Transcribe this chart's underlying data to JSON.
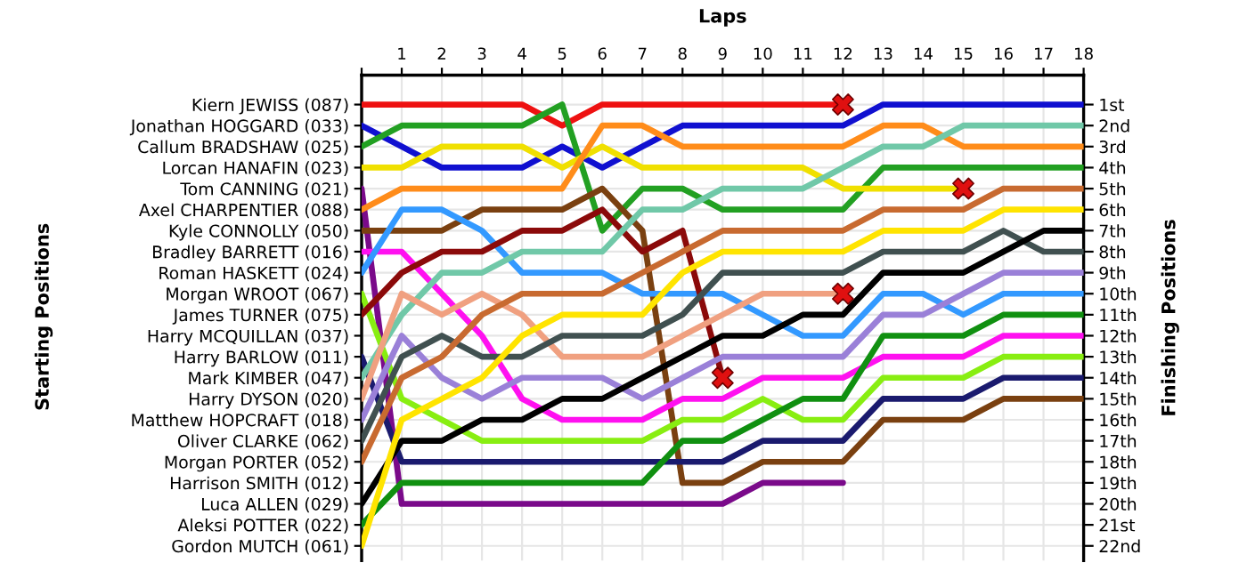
{
  "chart_data": {
    "type": "line",
    "xlabel": "Laps",
    "annotations": [
      "Starting Positions"
    ],
    "y2label": "Finishing Positions",
    "x": [
      0,
      1,
      2,
      3,
      4,
      5,
      6,
      7,
      8,
      9,
      10,
      11,
      12,
      13,
      14,
      15,
      16,
      17,
      18
    ],
    "xlim": [
      0,
      18
    ],
    "xticks": [
      {
        "value": 0,
        "label": null
      },
      1,
      2,
      3,
      4,
      5,
      6,
      7,
      8,
      9,
      10,
      11,
      12,
      13,
      14,
      15,
      16,
      17,
      18
    ],
    "y_categories": [
      "Kiern JEWISS (087)",
      "Jonathan HOGGARD (033)",
      "Callum BRADSHAW (025)",
      "Lorcan HANAFIN (023)",
      "Tom CANNING (021)",
      "Axel CHARPENTIER (088)",
      "Kyle CONNOLLY (050)",
      "Bradley BARRETT (016)",
      "Roman HASKETT (024)",
      "Morgan WROOT (067)",
      "James TURNER (075)",
      "Harry MCQUILLAN (037)",
      "Harry BARLOW (011)",
      "Mark KIMBER (047)",
      "Harry DYSON (020)",
      "Matthew HOPCRAFT (018)",
      "Oliver CLARKE (062)",
      "Morgan PORTER (052)",
      "Harrison SMITH (012)",
      "Luca ALLEN (029)",
      "Aleksi POTTER (022)",
      "Gordon MUTCH (061)"
    ],
    "y2lim": [
      22.7,
      -0.4
    ],
    "y2ticks": [
      {
        "value": 1,
        "label": "1st"
      },
      {
        "value": 2,
        "label": "2nd"
      },
      {
        "value": 3,
        "label": "3rd"
      },
      {
        "value": 4,
        "label": "4th"
      },
      {
        "value": 5,
        "label": "5th"
      },
      {
        "value": 6,
        "label": "6th"
      },
      {
        "value": 7,
        "label": "7th"
      },
      {
        "value": 8,
        "label": "8th"
      },
      {
        "value": 9,
        "label": "9th"
      },
      {
        "value": 10,
        "label": "10th"
      },
      {
        "value": 11,
        "label": "11th"
      },
      {
        "value": 12,
        "label": "12th"
      },
      {
        "value": 13,
        "label": "13th"
      },
      {
        "value": 14,
        "label": "14th"
      },
      {
        "value": 15,
        "label": "15th"
      },
      {
        "value": 16,
        "label": "16th"
      },
      {
        "value": 17,
        "label": "17th"
      },
      {
        "value": 18,
        "label": "18th"
      },
      {
        "value": 19,
        "label": "19th"
      },
      {
        "value": 20,
        "label": "20th"
      },
      {
        "value": 21,
        "label": "21st"
      },
      {
        "value": 22,
        "label": "22nd"
      }
    ],
    "grid": true,
    "marker": "none",
    "line_style": "solid",
    "series": [
      {
        "axis": "y2",
        "color": "#ee1111",
        "values": [
          1,
          1,
          1,
          1,
          1,
          2,
          1,
          1,
          1,
          1,
          1,
          1,
          1,
          null,
          null,
          null,
          null,
          null,
          null
        ]
      },
      {
        "axis": "y2",
        "color": "#1010d0",
        "values": [
          2,
          3,
          4,
          4,
          4,
          3,
          4,
          3,
          2,
          2,
          2,
          2,
          2,
          1,
          1,
          1,
          1,
          1,
          1
        ]
      },
      {
        "axis": "y2",
        "color": "#22a022",
        "values": [
          3,
          2,
          2,
          2,
          2,
          1,
          7,
          5,
          5,
          6,
          6,
          6,
          6,
          4,
          4,
          4,
          4,
          4,
          4
        ]
      },
      {
        "axis": "y2",
        "color": "#f0e000",
        "values": [
          4,
          4,
          3,
          3,
          3,
          4,
          3,
          4,
          4,
          4,
          4,
          4,
          5,
          5,
          5,
          5,
          null,
          null,
          null
        ]
      },
      {
        "axis": "y2",
        "color": "#7a0a8a",
        "values": [
          5,
          20,
          20,
          20,
          20,
          20,
          20,
          20,
          20,
          20,
          19,
          19,
          19,
          null,
          null,
          null,
          null,
          null,
          null
        ]
      },
      {
        "axis": "y2",
        "color": "#ff8c1a",
        "values": [
          6,
          5,
          5,
          5,
          5,
          5,
          2,
          2,
          3,
          3,
          3,
          3,
          3,
          2,
          2,
          3,
          3,
          3,
          3
        ]
      },
      {
        "axis": "y2",
        "color": "#7a4010",
        "values": [
          7,
          7,
          7,
          6,
          6,
          6,
          5,
          7,
          19,
          19,
          18,
          18,
          18,
          16,
          16,
          16,
          15,
          15,
          15
        ]
      },
      {
        "axis": "y2",
        "color": "#ff10f0",
        "values": [
          8,
          8,
          10,
          12,
          15,
          16,
          16,
          16,
          15,
          15,
          14,
          14,
          14,
          13,
          13,
          13,
          12,
          12,
          12
        ]
      },
      {
        "axis": "y2",
        "color": "#3399ff",
        "values": [
          9,
          6,
          6,
          7,
          9,
          9,
          9,
          10,
          10,
          10,
          11,
          12,
          12,
          10,
          10,
          11,
          10,
          10,
          10
        ]
      },
      {
        "axis": "y2",
        "color": "#88ee11",
        "values": [
          10,
          15,
          16,
          17,
          17,
          17,
          17,
          17,
          16,
          16,
          15,
          16,
          16,
          14,
          14,
          14,
          13,
          13,
          13
        ]
      },
      {
        "axis": "y2",
        "color": "#8b0a0a",
        "values": [
          11,
          9,
          8,
          8,
          7,
          7,
          6,
          8,
          7,
          14,
          null,
          null,
          null,
          null,
          null,
          null,
          null,
          null,
          null
        ]
      },
      {
        "axis": "y2",
        "color": "#1a1a6e",
        "values": [
          13,
          18,
          18,
          18,
          18,
          18,
          18,
          18,
          18,
          18,
          17,
          17,
          17,
          15,
          15,
          15,
          14,
          14,
          14
        ]
      },
      {
        "axis": "y2",
        "color": "#70c8a8",
        "values": [
          14,
          11,
          9,
          9,
          8,
          8,
          8,
          6,
          6,
          5,
          5,
          5,
          4,
          3,
          3,
          2,
          2,
          2,
          2
        ]
      },
      {
        "axis": "y2",
        "color": "#f0a080",
        "values": [
          15,
          10,
          11,
          10,
          11,
          13,
          13,
          13,
          12,
          11,
          10,
          10,
          10,
          null,
          null,
          null,
          null,
          null,
          null
        ]
      },
      {
        "axis": "y2",
        "color": "#9a80d8",
        "values": [
          16,
          12,
          14,
          15,
          14,
          14,
          14,
          15,
          14,
          13,
          13,
          13,
          13,
          11,
          11,
          10,
          9,
          9,
          9
        ]
      },
      {
        "axis": "y2",
        "color": "#405050",
        "values": [
          17,
          13,
          12,
          13,
          13,
          12,
          12,
          12,
          11,
          9,
          9,
          9,
          9,
          8,
          8,
          8,
          7,
          8,
          8
        ]
      },
      {
        "axis": "y2",
        "color": "#c86a30",
        "values": [
          18,
          14,
          13,
          11,
          10,
          10,
          10,
          9,
          8,
          7,
          7,
          7,
          7,
          6,
          6,
          6,
          5,
          5,
          5
        ]
      },
      {
        "axis": "y2",
        "color": "#000000",
        "values": [
          20,
          17,
          17,
          16,
          16,
          15,
          15,
          14,
          13,
          12,
          12,
          11,
          11,
          9,
          9,
          9,
          8,
          7,
          7
        ]
      },
      {
        "axis": "y2",
        "color": "#109010",
        "values": [
          21,
          19,
          19,
          19,
          19,
          19,
          19,
          19,
          17,
          17,
          16,
          15,
          15,
          12,
          12,
          12,
          11,
          11,
          11
        ]
      },
      {
        "axis": "y2",
        "color": "#ffe400",
        "values": [
          22,
          16,
          15,
          14,
          12,
          11,
          11,
          11,
          9,
          8,
          8,
          8,
          8,
          7,
          7,
          7,
          6,
          6,
          6
        ]
      },
      {
        "axis": "y2",
        "type": "scatter",
        "marker": "cross",
        "color": "#e01010",
        "x": [
          12,
          15,
          9,
          12
        ],
        "values": [
          1,
          5,
          14,
          10
        ]
      }
    ]
  }
}
